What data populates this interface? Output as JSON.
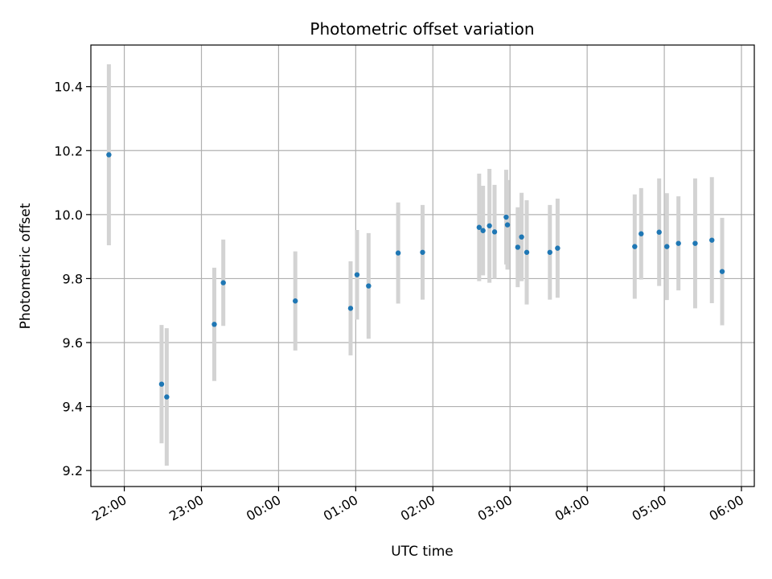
{
  "chart_data": {
    "type": "scatter",
    "title": "Photometric offset variation",
    "xlabel": "UTC time",
    "ylabel": "Photometric offset",
    "grid": true,
    "x_unit": "UTC time (HH:MM)",
    "x_ticks": [
      "22:00",
      "23:00",
      "00:00",
      "01:00",
      "02:00",
      "03:00",
      "04:00",
      "05:00",
      "06:00"
    ],
    "y_ticks": [
      9.2,
      9.4,
      9.6,
      9.8,
      10.0,
      10.2,
      10.4
    ],
    "xlim": [
      "21:34",
      "06:10"
    ],
    "ylim": [
      9.15,
      10.53
    ],
    "marker_color": "#1f77b4",
    "errorbar_color": "#d3d3d3",
    "series": [
      {
        "points": [
          {
            "x": "21:48",
            "y": 10.187,
            "err": 0.283
          },
          {
            "x": "22:29",
            "y": 9.47,
            "err": 0.185
          },
          {
            "x": "22:33",
            "y": 9.43,
            "err": 0.215
          },
          {
            "x": "23:10",
            "y": 9.657,
            "err": 0.177
          },
          {
            "x": "23:17",
            "y": 9.787,
            "err": 0.135
          },
          {
            "x": "00:13",
            "y": 9.73,
            "err": 0.155
          },
          {
            "x": "00:56",
            "y": 9.707,
            "err": 0.147
          },
          {
            "x": "01:01",
            "y": 9.812,
            "err": 0.14
          },
          {
            "x": "01:10",
            "y": 9.777,
            "err": 0.165
          },
          {
            "x": "01:33",
            "y": 9.88,
            "err": 0.158
          },
          {
            "x": "01:52",
            "y": 9.882,
            "err": 0.148
          },
          {
            "x": "02:36",
            "y": 9.96,
            "err": 0.168
          },
          {
            "x": "02:39",
            "y": 9.95,
            "err": 0.14
          },
          {
            "x": "02:44",
            "y": 9.965,
            "err": 0.178
          },
          {
            "x": "02:48",
            "y": 9.946,
            "err": 0.147
          },
          {
            "x": "02:57",
            "y": 9.992,
            "err": 0.148
          },
          {
            "x": "02:58",
            "y": 9.968,
            "err": 0.14
          },
          {
            "x": "03:06",
            "y": 9.898,
            "err": 0.125
          },
          {
            "x": "03:09",
            "y": 9.93,
            "err": 0.138
          },
          {
            "x": "03:13",
            "y": 9.882,
            "err": 0.163
          },
          {
            "x": "03:31",
            "y": 9.882,
            "err": 0.148
          },
          {
            "x": "03:37",
            "y": 9.895,
            "err": 0.155
          },
          {
            "x": "04:37",
            "y": 9.9,
            "err": 0.163
          },
          {
            "x": "04:42",
            "y": 9.94,
            "err": 0.143
          },
          {
            "x": "04:56",
            "y": 9.945,
            "err": 0.168
          },
          {
            "x": "05:02",
            "y": 9.9,
            "err": 0.167
          },
          {
            "x": "05:11",
            "y": 9.91,
            "err": 0.147
          },
          {
            "x": "05:24",
            "y": 9.91,
            "err": 0.203
          },
          {
            "x": "05:37",
            "y": 9.92,
            "err": 0.197
          },
          {
            "x": "05:45",
            "y": 9.822,
            "err": 0.168
          }
        ]
      }
    ]
  }
}
